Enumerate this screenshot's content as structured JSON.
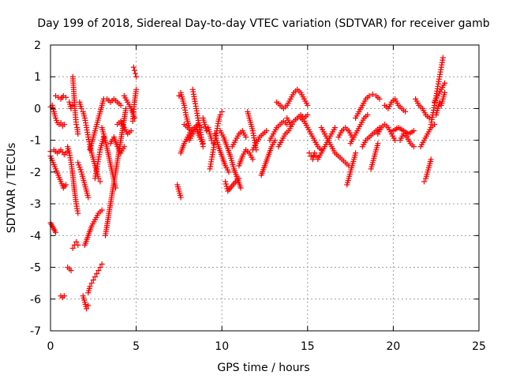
{
  "chart_data": {
    "type": "scatter",
    "title": "Day 199 of 2018, Sidereal Day-to-day VTEC variation (SDTVAR) for receiver gamb",
    "xlabel": "GPS time / hours",
    "ylabel": "SDTVAR / TECUs",
    "xlim": [
      0,
      25
    ],
    "ylim": [
      -7,
      2
    ],
    "xticks": [
      0,
      5,
      10,
      15,
      20,
      25
    ],
    "yticks": [
      -7,
      -6,
      -5,
      -4,
      -3,
      -2,
      -1,
      0,
      1,
      2
    ],
    "grid": true,
    "marker": "+",
    "marker_color": "#ff0000",
    "segments": [
      {
        "x": [
          0.0,
          0.05,
          0.1,
          0.15,
          0.2,
          0.25,
          0.3
        ],
        "y": [
          -3.6,
          -3.65,
          -3.7,
          -3.75,
          -3.8,
          -3.85,
          -3.9
        ]
      },
      {
        "x": [
          0.0,
          0.2,
          0.4,
          0.6,
          0.8,
          1.0
        ],
        "y": [
          -1.35,
          -1.3,
          -1.4,
          -1.3,
          -1.45,
          -1.35
        ]
      },
      {
        "x": [
          0.0,
          0.15,
          0.3,
          0.45,
          0.6,
          0.75,
          0.9
        ],
        "y": [
          -1.5,
          -1.7,
          -1.9,
          -2.1,
          -2.3,
          -2.5,
          -2.4
        ]
      },
      {
        "x": [
          0.0,
          0.1,
          0.2,
          0.3,
          0.4,
          0.5,
          0.6,
          0.7,
          0.8
        ],
        "y": [
          0.05,
          0.1,
          -0.1,
          -0.3,
          -0.45,
          -0.5,
          -0.45,
          -0.55,
          -0.5
        ]
      },
      {
        "x": [
          0.3,
          0.45,
          0.6,
          0.75,
          0.9
        ],
        "y": [
          0.4,
          0.35,
          0.3,
          0.4,
          0.35
        ]
      },
      {
        "x": [
          0.6,
          0.7,
          0.8
        ],
        "y": [
          -5.9,
          -5.95,
          -5.9
        ]
      },
      {
        "x": [
          1.0,
          1.1,
          1.2,
          1.3,
          1.4,
          1.5,
          1.6
        ],
        "y": [
          -1.2,
          -1.4,
          -1.7,
          -2.1,
          -2.6,
          -3.0,
          -3.3
        ]
      },
      {
        "x": [
          1.0,
          1.1,
          1.2
        ],
        "y": [
          -5.0,
          -5.05,
          -5.1
        ]
      },
      {
        "x": [
          1.1,
          1.2,
          1.3
        ],
        "y": [
          0.2,
          0.0,
          0.1
        ]
      },
      {
        "x": [
          1.3,
          1.4,
          1.5,
          1.6
        ],
        "y": [
          -4.4,
          -4.3,
          -4.2,
          -4.3
        ]
      },
      {
        "x": [
          1.3,
          1.35,
          1.4,
          1.45,
          1.5,
          1.55,
          1.6
        ],
        "y": [
          1.0,
          0.6,
          0.2,
          -0.2,
          -0.5,
          -0.6,
          -0.8
        ]
      },
      {
        "x": [
          1.6,
          1.7,
          1.8,
          1.9,
          2.0,
          2.1,
          2.2
        ],
        "y": [
          -1.7,
          -1.85,
          -2.0,
          -2.2,
          -2.4,
          -2.6,
          -2.8
        ]
      },
      {
        "x": [
          1.7,
          1.8,
          1.9,
          2.0,
          2.1,
          2.2,
          2.3,
          2.4,
          2.5,
          2.6,
          2.7,
          2.8,
          2.9
        ],
        "y": [
          0.2,
          0.0,
          -0.1,
          -0.3,
          -0.6,
          -0.9,
          -1.2,
          -1.4,
          -1.6,
          -1.8,
          -2.0,
          -2.2,
          -2.3
        ]
      },
      {
        "x": [
          1.9,
          2.0,
          2.1,
          2.2
        ],
        "y": [
          -5.9,
          -6.1,
          -6.3,
          -6.2
        ]
      },
      {
        "x": [
          2.0,
          2.2,
          2.4,
          2.6,
          2.8,
          3.0
        ],
        "y": [
          -4.3,
          -4.0,
          -3.7,
          -3.5,
          -3.3,
          -3.2
        ]
      },
      {
        "x": [
          2.2,
          2.3,
          2.4,
          2.5,
          2.6,
          2.7,
          2.8,
          2.9,
          3.0
        ],
        "y": [
          -5.8,
          -5.6,
          -5.5,
          -5.4,
          -5.3,
          -5.2,
          -5.1,
          -5.0,
          -4.9
        ]
      },
      {
        "x": [
          2.3,
          2.4,
          2.5,
          2.6,
          2.7,
          2.8,
          2.9,
          3.0,
          3.1
        ],
        "y": [
          -1.3,
          -1.1,
          -0.9,
          -0.7,
          -0.5,
          -0.3,
          -0.1,
          0.1,
          0.3
        ]
      },
      {
        "x": [
          2.6,
          2.7,
          2.8,
          2.9,
          3.0,
          3.1
        ],
        "y": [
          -2.2,
          -1.9,
          -1.6,
          -1.3,
          -1.1,
          -0.9
        ]
      },
      {
        "x": [
          3.0,
          3.2,
          3.4,
          3.6,
          3.8
        ],
        "y": [
          -0.6,
          -1.0,
          -1.5,
          -2.0,
          -2.5
        ]
      },
      {
        "x": [
          3.2,
          3.35,
          3.5,
          3.65,
          3.8,
          3.95,
          4.1,
          4.25,
          4.4
        ],
        "y": [
          -4.0,
          -3.5,
          -3.0,
          -2.5,
          -2.0,
          -1.5,
          -1.0,
          -0.5,
          0.0
        ]
      },
      {
        "x": [
          3.3,
          3.5,
          3.7,
          3.9,
          4.1
        ],
        "y": [
          0.3,
          0.2,
          0.3,
          0.2,
          0.1
        ]
      },
      {
        "x": [
          3.5,
          3.7,
          3.9,
          4.1,
          4.3
        ],
        "y": [
          -1.1,
          -0.9,
          -1.2,
          -1.4,
          -1.2
        ]
      },
      {
        "x": [
          3.9,
          4.1,
          4.3,
          4.5,
          4.7
        ],
        "y": [
          -0.5,
          -0.4,
          -0.6,
          -0.8,
          -0.7
        ]
      },
      {
        "x": [
          4.3,
          4.5,
          4.7,
          4.9
        ],
        "y": [
          0.4,
          0.2,
          0.0,
          -0.3
        ]
      },
      {
        "x": [
          4.8,
          4.85,
          4.9,
          4.95,
          5.0
        ],
        "y": [
          -0.4,
          -0.1,
          0.2,
          0.4,
          0.6
        ]
      },
      {
        "x": [
          4.85,
          4.9,
          4.95,
          5.0
        ],
        "y": [
          1.3,
          1.2,
          1.1,
          1.0
        ]
      },
      {
        "x": [
          7.4,
          7.5,
          7.6
        ],
        "y": [
          -2.4,
          -2.6,
          -2.8
        ]
      },
      {
        "x": [
          7.5,
          7.6,
          7.7,
          7.8,
          7.9,
          8.0,
          8.1,
          8.2
        ],
        "y": [
          0.4,
          0.5,
          0.3,
          0.1,
          -0.2,
          -0.4,
          -0.6,
          -0.7
        ]
      },
      {
        "x": [
          7.6,
          7.8,
          8.0,
          8.2,
          8.4,
          8.6
        ],
        "y": [
          -1.4,
          -1.1,
          -0.9,
          -0.7,
          -0.6,
          -0.5
        ]
      },
      {
        "x": [
          7.8,
          8.0,
          8.2,
          8.4,
          8.6,
          8.8
        ],
        "y": [
          -0.5,
          -0.6,
          -0.7,
          -0.6,
          -0.5,
          -0.6
        ]
      },
      {
        "x": [
          8.1,
          8.3,
          8.5,
          8.7,
          8.9
        ],
        "y": [
          -1.0,
          -0.8,
          -0.6,
          -0.9,
          -1.1
        ]
      },
      {
        "x": [
          8.3,
          8.4,
          8.5,
          8.6,
          8.7,
          8.8,
          8.9
        ],
        "y": [
          0.6,
          0.3,
          0.0,
          -0.3,
          -0.6,
          -0.9,
          -1.2
        ]
      },
      {
        "x": [
          8.9,
          9.0,
          9.1,
          9.2,
          9.3,
          9.4,
          9.5
        ],
        "y": [
          -0.3,
          -0.5,
          -0.7,
          -0.6,
          -0.8,
          -1.0,
          -1.1
        ]
      },
      {
        "x": [
          9.3,
          9.4,
          9.5,
          9.6,
          9.7,
          9.8,
          9.9,
          10.0
        ],
        "y": [
          -1.9,
          -1.6,
          -1.3,
          -1.0,
          -0.7,
          -0.4,
          -0.2,
          -0.1
        ]
      },
      {
        "x": [
          9.6,
          9.8,
          10.0,
          10.2,
          10.4
        ],
        "y": [
          -0.8,
          -1.2,
          -1.5,
          -1.8,
          -2.0
        ]
      },
      {
        "x": [
          9.9,
          10.1,
          10.3,
          10.5,
          10.7,
          10.9,
          11.1
        ],
        "y": [
          -0.7,
          -0.9,
          -1.2,
          -1.5,
          -1.9,
          -2.2,
          -2.5
        ]
      },
      {
        "x": [
          10.2,
          10.35,
          10.5,
          10.65,
          10.8,
          11.0
        ],
        "y": [
          -2.3,
          -2.6,
          -2.5,
          -2.4,
          -2.3,
          -2.2
        ]
      },
      {
        "x": [
          10.6,
          10.8,
          11.0,
          11.2,
          11.4
        ],
        "y": [
          -1.2,
          -1.0,
          -0.8,
          -0.7,
          -0.9
        ]
      },
      {
        "x": [
          11.0,
          11.2,
          11.4,
          11.6,
          11.8
        ],
        "y": [
          -1.8,
          -1.5,
          -1.3,
          -1.4,
          -1.6
        ]
      },
      {
        "x": [
          11.5,
          11.6,
          11.7,
          11.8,
          11.9,
          12.0
        ],
        "y": [
          -0.1,
          -0.3,
          -0.5,
          -0.7,
          -1.0,
          -1.3
        ]
      },
      {
        "x": [
          11.8,
          12.0,
          12.2,
          12.4,
          12.6
        ],
        "y": [
          -1.3,
          -1.1,
          -0.9,
          -0.8,
          -0.7
        ]
      },
      {
        "x": [
          12.3,
          12.5,
          12.7,
          12.9,
          13.1
        ],
        "y": [
          -2.1,
          -1.8,
          -1.5,
          -1.2,
          -1.0
        ]
      },
      {
        "x": [
          12.8,
          13.0,
          13.2,
          13.4,
          13.6,
          13.8
        ],
        "y": [
          -1.0,
          -0.8,
          -0.6,
          -0.5,
          -0.4,
          -0.5
        ]
      },
      {
        "x": [
          13.2,
          13.4,
          13.6,
          13.8,
          14.0,
          14.2,
          14.4,
          14.6,
          14.8,
          15.0
        ],
        "y": [
          0.2,
          0.1,
          0.0,
          0.1,
          0.3,
          0.5,
          0.6,
          0.5,
          0.3,
          0.1
        ]
      },
      {
        "x": [
          13.3,
          13.5,
          13.7,
          13.9,
          14.1
        ],
        "y": [
          -1.2,
          -1.0,
          -0.8,
          -0.7,
          -0.5
        ]
      },
      {
        "x": [
          13.8,
          14.0,
          14.2,
          14.4,
          14.6,
          14.8,
          15.0
        ],
        "y": [
          -0.3,
          -0.5,
          -0.4,
          -0.3,
          -0.2,
          -0.3,
          -0.2
        ]
      },
      {
        "x": [
          14.6,
          14.8,
          15.0,
          15.2,
          15.4,
          15.6,
          15.8
        ],
        "y": [
          -0.3,
          -0.4,
          -0.6,
          -0.8,
          -1.0,
          -1.2,
          -1.3
        ]
      },
      {
        "x": [
          15.1,
          15.2,
          15.3,
          15.4,
          15.5
        ],
        "y": [
          -1.4,
          -1.5,
          -1.6,
          -1.4,
          -1.5
        ]
      },
      {
        "x": [
          15.6,
          15.8,
          16.0,
          16.2,
          16.4,
          16.6
        ],
        "y": [
          -1.6,
          -1.4,
          -1.2,
          -1.0,
          -0.8,
          -0.6
        ]
      },
      {
        "x": [
          15.8,
          16.0,
          16.2,
          16.4,
          16.6,
          16.8,
          17.0,
          17.2,
          17.4
        ],
        "y": [
          -0.6,
          -0.8,
          -1.0,
          -1.2,
          -1.4,
          -1.5,
          -1.6,
          -1.7,
          -1.8
        ]
      },
      {
        "x": [
          16.8,
          17.0,
          17.2,
          17.4,
          17.6
        ],
        "y": [
          -0.9,
          -0.7,
          -0.6,
          -0.7,
          -0.9
        ]
      },
      {
        "x": [
          17.3,
          17.4,
          17.5,
          17.6,
          17.7,
          17.8
        ],
        "y": [
          -2.4,
          -2.2,
          -2.0,
          -1.8,
          -1.6,
          -1.4
        ]
      },
      {
        "x": [
          17.5,
          17.7,
          17.9,
          18.1,
          18.3,
          18.5
        ],
        "y": [
          -1.1,
          -0.9,
          -0.7,
          -0.5,
          -0.3,
          -0.2
        ]
      },
      {
        "x": [
          17.8,
          18.0,
          18.2,
          18.4,
          18.6,
          18.8,
          19.0,
          19.2
        ],
        "y": [
          -0.3,
          -0.1,
          0.1,
          0.3,
          0.4,
          0.45,
          0.4,
          0.3
        ]
      },
      {
        "x": [
          18.2,
          18.4,
          18.6,
          18.8,
          19.0,
          19.2
        ],
        "y": [
          -1.2,
          -1.0,
          -0.9,
          -0.8,
          -0.7,
          -0.6
        ]
      },
      {
        "x": [
          18.7,
          18.8,
          18.9,
          19.0,
          19.1
        ],
        "y": [
          -1.9,
          -1.7,
          -1.5,
          -1.3,
          -1.1
        ]
      },
      {
        "x": [
          19.1,
          19.3,
          19.5,
          19.7,
          19.9,
          20.1
        ],
        "y": [
          -0.8,
          -0.6,
          -0.5,
          -0.6,
          -0.8,
          -1.0
        ]
      },
      {
        "x": [
          19.5,
          19.7,
          19.9,
          20.1,
          20.3,
          20.5,
          20.7
        ],
        "y": [
          0.1,
          0.0,
          0.2,
          0.3,
          0.1,
          0.0,
          -0.1
        ]
      },
      {
        "x": [
          20.0,
          20.3,
          20.6,
          20.9,
          21.2
        ],
        "y": [
          -0.7,
          -0.6,
          -0.7,
          -0.8,
          -0.7
        ]
      },
      {
        "x": [
          20.4,
          20.6,
          20.8,
          21.0,
          21.2
        ],
        "y": [
          -1.0,
          -0.8,
          -0.9,
          -1.1,
          -1.2
        ]
      },
      {
        "x": [
          21.3,
          21.5,
          21.7,
          21.9,
          22.1
        ],
        "y": [
          0.3,
          0.1,
          0.0,
          -0.2,
          -0.3
        ]
      },
      {
        "x": [
          21.8,
          21.9,
          22.0,
          22.1,
          22.2
        ],
        "y": [
          -2.3,
          -2.2,
          -2.0,
          -1.8,
          -1.6
        ]
      },
      {
        "x": [
          21.6,
          21.8,
          22.0,
          22.2,
          22.4
        ],
        "y": [
          -1.2,
          -1.0,
          -0.8,
          -0.6,
          -0.5
        ]
      },
      {
        "x": [
          22.2,
          22.3,
          22.4,
          22.5,
          22.6,
          22.7,
          22.8,
          22.9
        ],
        "y": [
          -0.5,
          -0.2,
          0.1,
          0.4,
          0.7,
          1.0,
          1.3,
          1.6
        ]
      },
      {
        "x": [
          22.4,
          22.6,
          22.8,
          23.0
        ],
        "y": [
          0.2,
          0.4,
          0.6,
          0.8
        ]
      },
      {
        "x": [
          22.5,
          22.6,
          22.7,
          22.8,
          22.9,
          23.0
        ],
        "y": [
          -0.2,
          0.0,
          0.2,
          0.1,
          0.3,
          0.5
        ]
      }
    ]
  }
}
